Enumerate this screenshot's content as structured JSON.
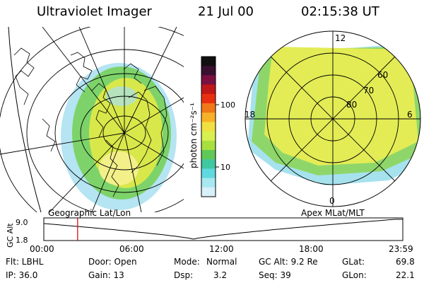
{
  "header": {
    "title": "Ultraviolet Imager",
    "date": "21 Jul 00",
    "time": "02:15:38 UT"
  },
  "colorbar": {
    "label": "photon cm⁻²s⁻¹",
    "ticks": [
      "100",
      "10"
    ],
    "colors": [
      "#101010",
      "#3a1030",
      "#7a1040",
      "#c01818",
      "#e83010",
      "#f07818",
      "#f8b028",
      "#f0e040",
      "#d8f050",
      "#a8e040",
      "#60c858",
      "#40c8a0",
      "#60d8e0",
      "#a8e8f0",
      "#d8f0f8"
    ]
  },
  "left_map": {
    "panel_label": "Geographic Lat/Lon",
    "colors": {
      "glow": "#d8e84a",
      "outer": "#7dd36a",
      "edge": "#a8dff0",
      "bright": "#f3f08a"
    }
  },
  "right_map": {
    "panel_label": "Apex MLat/MLT",
    "mlt_labels": {
      "top": "12",
      "left": "18",
      "right": "6",
      "bottom": "0"
    },
    "lat_labels": [
      "60",
      "70",
      "80"
    ],
    "colors": {
      "fill": "#e3ec55",
      "dim": "#8fd66a",
      "edge": "#a6e2ee"
    }
  },
  "timeline": {
    "y_axis_title": "GC Alt",
    "y_ticks": [
      "9.0",
      "1.8"
    ],
    "x_ticks": [
      "00:00",
      "06:00",
      "12:00",
      "18:00",
      "23:59"
    ],
    "marker_color": "#cc0000",
    "current_time_hours": 2.26
  },
  "info": {
    "flt": "Flt: LBHL",
    "ip": "IP: 36.0",
    "door": "Door: Open",
    "gain": "Gain: 13",
    "mode_label": "Mode:",
    "mode_value": "Normal",
    "dsp_label": "Dsp:",
    "dsp_value": "3.2",
    "gcalt": "GC Alt: 9.2 Re",
    "seq": "Seq: 39",
    "glat_label": "GLat:",
    "glat_value": "69.8",
    "glon_label": "GLon:",
    "glon_value": "22.1"
  }
}
